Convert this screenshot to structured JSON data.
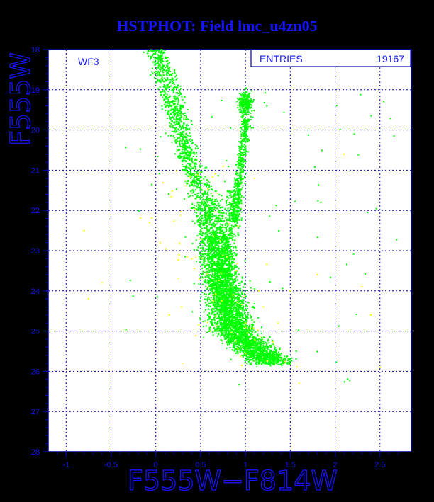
{
  "chart_data": {
    "type": "scatter",
    "title": "HSTPHOT: Field lmc_u4zn05",
    "xlabel": "F555W−F814W",
    "ylabel": "F555W",
    "xlim": [
      -1.2,
      2.85
    ],
    "ylim": [
      28,
      18
    ],
    "y_inverted": true,
    "grid": true,
    "x_ticks": [
      "-1",
      "-0.5",
      "0",
      "0.5",
      "1",
      "1.5",
      "2",
      "2.5"
    ],
    "y_ticks": [
      "18",
      "19",
      "20",
      "21",
      "22",
      "23",
      "24",
      "25",
      "26",
      "27",
      "28"
    ],
    "chip_label": "WF3",
    "stats": {
      "label": "ENTRIES",
      "value": "19167"
    },
    "colors": {
      "background": "#000000",
      "plot_area": "#ffffff",
      "axis": "#0000aa",
      "text": "#1414ff",
      "primary_points": "#00ff00",
      "secondary_points": "#ffff00"
    },
    "series": [
      {
        "marker_color": "#00ff00",
        "description_points": [
          [
            0.02,
            18.0
          ],
          [
            0.05,
            18.7
          ],
          [
            0.08,
            19.2
          ],
          [
            0.12,
            19.7
          ],
          [
            0.18,
            20.1
          ],
          [
            0.25,
            20.6
          ],
          [
            0.32,
            21.0
          ],
          [
            0.4,
            21.4
          ],
          [
            0.5,
            21.8
          ],
          [
            0.58,
            22.2
          ],
          [
            0.62,
            22.6
          ],
          [
            0.66,
            23.0
          ],
          [
            0.7,
            23.4
          ],
          [
            0.75,
            23.8
          ],
          [
            0.8,
            24.2
          ],
          [
            0.88,
            24.6
          ],
          [
            1.0,
            25.0
          ],
          [
            1.15,
            25.3
          ],
          [
            1.3,
            25.6
          ],
          [
            1.0,
            19.4
          ],
          [
            1.03,
            19.2
          ],
          [
            0.98,
            19.6
          ],
          [
            1.0,
            20.5
          ],
          [
            1.02,
            21.0
          ],
          [
            0.95,
            21.8
          ],
          [
            0.88,
            22.2
          ]
        ]
      },
      {
        "marker_color": "#ffff00",
        "description_points": [
          [
            -0.8,
            22.5
          ],
          [
            -0.75,
            24.2
          ],
          [
            -0.6,
            23.8
          ],
          [
            0.05,
            22.8
          ],
          [
            0.15,
            24.6
          ],
          [
            0.4,
            23.2
          ],
          [
            0.9,
            23.5
          ],
          [
            1.2,
            24.4
          ],
          [
            1.5,
            24.0
          ],
          [
            1.8,
            23.6
          ],
          [
            2.1,
            20.6
          ],
          [
            2.3,
            23.9
          ],
          [
            2.4,
            24.6
          ],
          [
            2.5,
            25.9
          ],
          [
            1.6,
            26.3
          ],
          [
            0.3,
            25.8
          ],
          [
            1.1,
            21.2
          ],
          [
            0.75,
            20.9
          ]
        ]
      }
    ]
  }
}
